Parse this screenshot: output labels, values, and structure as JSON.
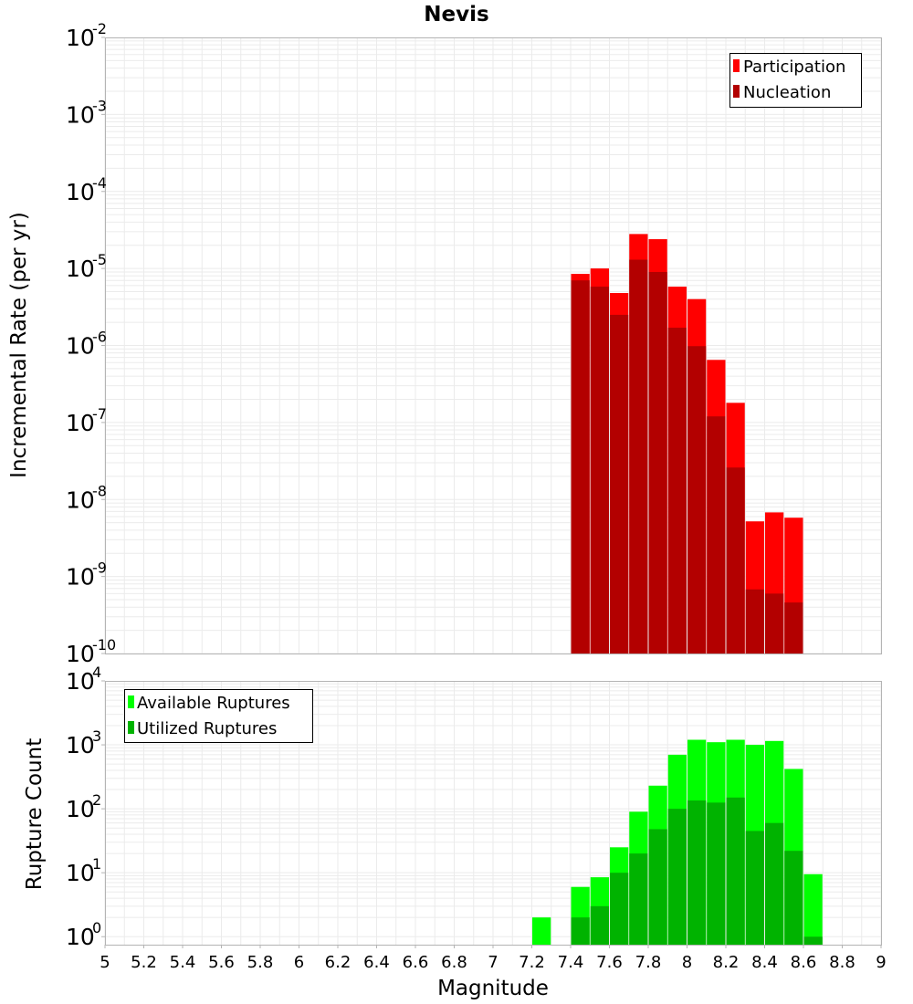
{
  "colors": {
    "participation": "#ff0000",
    "nucleation": "#b30000",
    "available": "#00ff00",
    "utilized": "#00b300",
    "gridline": "#ebebeb",
    "frame": "#b4b4b4"
  },
  "chart_data": [
    {
      "type": "bar",
      "scale": "log",
      "title": "Nevis",
      "xlabel": "Magnitude",
      "ylabel": "Incremental Rate (per yr)",
      "xlim": [
        5,
        9
      ],
      "ylim_exp": [
        -10,
        -2
      ],
      "y_ticks": [
        {
          "base": "10",
          "exp": "-2",
          "value": 0.01
        },
        {
          "base": "10",
          "exp": "-3",
          "value": 0.001
        },
        {
          "base": "10",
          "exp": "-4",
          "value": 0.0001
        },
        {
          "base": "10",
          "exp": "-5",
          "value": 1e-05
        },
        {
          "base": "10",
          "exp": "-6",
          "value": 1e-06
        },
        {
          "base": "10",
          "exp": "-7",
          "value": 1e-07
        },
        {
          "base": "10",
          "exp": "-8",
          "value": 1e-08
        },
        {
          "base": "10",
          "exp": "-9",
          "value": 1e-09
        },
        {
          "base": "10",
          "exp": "-10",
          "value": 1e-10
        }
      ],
      "legend": {
        "position": "top-right",
        "entries": [
          "Participation",
          "Nucleation"
        ]
      },
      "series": [
        {
          "name": "Participation",
          "x": [
            7.45,
            7.55,
            7.65,
            7.75,
            7.85,
            7.95,
            8.05,
            8.15,
            8.25,
            8.35,
            8.45,
            8.55
          ],
          "values": [
            8.5e-06,
            1e-05,
            4.8e-06,
            2.8e-05,
            2.4e-05,
            5.8e-06,
            4e-06,
            6.5e-07,
            1.8e-07,
            5.2e-09,
            6.8e-09,
            5.8e-09
          ]
        },
        {
          "name": "Nucleation",
          "x": [
            7.45,
            7.55,
            7.65,
            7.75,
            7.85,
            7.95,
            8.05,
            8.15,
            8.25,
            8.35,
            8.45,
            8.55
          ],
          "values": [
            7e-06,
            5.8e-06,
            2.5e-06,
            1.3e-05,
            9e-06,
            1.7e-06,
            9.8e-07,
            1.2e-07,
            2.6e-08,
            6.8e-10,
            6e-10,
            4.6e-10
          ]
        }
      ]
    },
    {
      "type": "bar",
      "scale": "log",
      "xlabel": "Magnitude",
      "ylabel": "Rupture Count",
      "xlim": [
        5,
        9
      ],
      "ylim": [
        0.75,
        10000
      ],
      "x_ticks": [
        "5",
        "5.2",
        "5.4",
        "5.6",
        "5.8",
        "6",
        "6.2",
        "6.4",
        "6.6",
        "6.8",
        "7",
        "7.2",
        "7.4",
        "7.6",
        "7.8",
        "8",
        "8.2",
        "8.4",
        "8.6",
        "8.8",
        "9"
      ],
      "y_ticks": [
        {
          "base": "10",
          "exp": "4",
          "value": 10000
        },
        {
          "base": "10",
          "exp": "3",
          "value": 1000
        },
        {
          "base": "10",
          "exp": "2",
          "value": 100
        },
        {
          "base": "10",
          "exp": "1",
          "value": 10
        },
        {
          "base": "10",
          "exp": "0",
          "value": 1
        }
      ],
      "legend": {
        "position": "top-left",
        "entries": [
          "Available Ruptures",
          "Utilized Ruptures"
        ]
      },
      "series": [
        {
          "name": "Available Ruptures",
          "x": [
            7.25,
            7.45,
            7.55,
            7.65,
            7.75,
            7.85,
            7.95,
            8.05,
            8.15,
            8.25,
            8.35,
            8.45,
            8.55,
            8.65
          ],
          "values": [
            2,
            6,
            8.5,
            25,
            90,
            230,
            700,
            1200,
            1100,
            1200,
            1000,
            1150,
            420,
            9.5
          ]
        },
        {
          "name": "Utilized Ruptures",
          "x": [
            7.45,
            7.55,
            7.65,
            7.75,
            7.85,
            7.95,
            8.05,
            8.15,
            8.25,
            8.35,
            8.45,
            8.55,
            8.65
          ],
          "values": [
            2,
            3,
            10,
            20,
            48,
            100,
            135,
            125,
            150,
            45,
            60,
            22,
            1
          ]
        }
      ]
    }
  ]
}
